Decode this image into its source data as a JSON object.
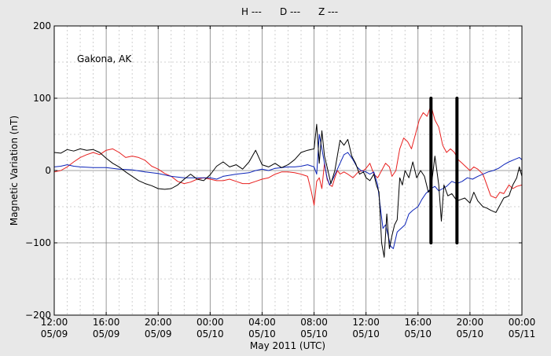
{
  "chart_data": {
    "type": "line",
    "station": "Gakona, AK",
    "ylabel": "Magnetic Variation (nT)",
    "xlabel": "May 2011 (UTC)",
    "xlim": [
      0,
      36
    ],
    "ylim": [
      -200,
      200
    ],
    "yticks": [
      -200,
      -100,
      0,
      100,
      200
    ],
    "ytick_labels": [
      "−200",
      "−100",
      "0",
      "100",
      "200"
    ],
    "xticks": [
      {
        "x": 0,
        "time": "12:00",
        "date": "05/09"
      },
      {
        "x": 4,
        "time": "16:00",
        "date": "05/09"
      },
      {
        "x": 8,
        "time": "20:00",
        "date": "05/09"
      },
      {
        "x": 12,
        "time": "00:00",
        "date": "05/10"
      },
      {
        "x": 16,
        "time": "04:00",
        "date": "05/10"
      },
      {
        "x": 20,
        "time": "08:00",
        "date": "05/10"
      },
      {
        "x": 24,
        "time": "12:00",
        "date": "05/10"
      },
      {
        "x": 28,
        "time": "16:00",
        "date": "05/10"
      },
      {
        "x": 32,
        "time": "20:00",
        "date": "05/10"
      },
      {
        "x": 36,
        "time": "00:00",
        "date": "05/11"
      }
    ],
    "grid": true,
    "legend_position": "top-center",
    "series": [
      {
        "name": "H ---",
        "color": "#000000",
        "points": [
          [
            0,
            25
          ],
          [
            0.5,
            24
          ],
          [
            1,
            29
          ],
          [
            1.5,
            27
          ],
          [
            2,
            30
          ],
          [
            2.5,
            28
          ],
          [
            3,
            29
          ],
          [
            3.5,
            25
          ],
          [
            4,
            17
          ],
          [
            4.5,
            10
          ],
          [
            5,
            5
          ],
          [
            5.5,
            -2
          ],
          [
            6,
            -8
          ],
          [
            6.5,
            -14
          ],
          [
            7,
            -18
          ],
          [
            7.5,
            -21
          ],
          [
            8,
            -25
          ],
          [
            8.5,
            -26
          ],
          [
            9,
            -25
          ],
          [
            9.5,
            -20
          ],
          [
            10,
            -12
          ],
          [
            10.5,
            -5
          ],
          [
            11,
            -12
          ],
          [
            11.5,
            -14
          ],
          [
            12,
            -6
          ],
          [
            12.5,
            6
          ],
          [
            13,
            12
          ],
          [
            13.5,
            5
          ],
          [
            14,
            8
          ],
          [
            14.5,
            2
          ],
          [
            15,
            12
          ],
          [
            15.5,
            28
          ],
          [
            16,
            8
          ],
          [
            16.5,
            5
          ],
          [
            17,
            10
          ],
          [
            17.5,
            4
          ],
          [
            18,
            8
          ],
          [
            18.5,
            15
          ],
          [
            19,
            25
          ],
          [
            19.5,
            28
          ],
          [
            20,
            30
          ],
          [
            20.2,
            64
          ],
          [
            20.4,
            10
          ],
          [
            20.6,
            55
          ],
          [
            20.8,
            20
          ],
          [
            21,
            5
          ],
          [
            21.3,
            -18
          ],
          [
            21.6,
            0
          ],
          [
            22,
            42
          ],
          [
            22.3,
            35
          ],
          [
            22.6,
            43
          ],
          [
            22.9,
            20
          ],
          [
            23.2,
            10
          ],
          [
            23.5,
            -5
          ],
          [
            23.8,
            -2
          ],
          [
            24,
            -10
          ],
          [
            24.3,
            -14
          ],
          [
            24.6,
            -5
          ],
          [
            24.8,
            -20
          ],
          [
            25,
            -30
          ],
          [
            25.2,
            -100
          ],
          [
            25.4,
            -120
          ],
          [
            25.6,
            -60
          ],
          [
            25.8,
            -108
          ],
          [
            26,
            -90
          ],
          [
            26.2,
            -75
          ],
          [
            26.4,
            -68
          ],
          [
            26.6,
            -10
          ],
          [
            26.8,
            -20
          ],
          [
            27,
            0
          ],
          [
            27.3,
            -10
          ],
          [
            27.6,
            12
          ],
          [
            27.9,
            -10
          ],
          [
            28.2,
            0
          ],
          [
            28.5,
            -8
          ],
          [
            28.8,
            -30
          ],
          [
            29,
            -25
          ],
          [
            29.3,
            20
          ],
          [
            29.6,
            -20
          ],
          [
            29.8,
            -70
          ],
          [
            30,
            -20
          ],
          [
            30.3,
            -35
          ],
          [
            30.6,
            -32
          ],
          [
            31,
            -42
          ],
          [
            31.3,
            -40
          ],
          [
            31.6,
            -38
          ],
          [
            32,
            -45
          ],
          [
            32.3,
            -30
          ],
          [
            32.6,
            -42
          ],
          [
            33,
            -50
          ],
          [
            33.3,
            -52
          ],
          [
            33.6,
            -55
          ],
          [
            34,
            -58
          ],
          [
            34.3,
            -48
          ],
          [
            34.6,
            -38
          ],
          [
            35,
            -35
          ],
          [
            35.3,
            -20
          ],
          [
            35.6,
            -10
          ],
          [
            35.8,
            5
          ],
          [
            36,
            -8
          ]
        ]
      },
      {
        "name": "D ---",
        "color": "#e8201f",
        "points": [
          [
            0,
            -2
          ],
          [
            0.5,
            0
          ],
          [
            1,
            5
          ],
          [
            1.5,
            12
          ],
          [
            2,
            18
          ],
          [
            2.5,
            22
          ],
          [
            3,
            25
          ],
          [
            3.5,
            22
          ],
          [
            4,
            28
          ],
          [
            4.5,
            30
          ],
          [
            5,
            25
          ],
          [
            5.5,
            18
          ],
          [
            6,
            20
          ],
          [
            6.5,
            18
          ],
          [
            7,
            14
          ],
          [
            7.5,
            6
          ],
          [
            8,
            2
          ],
          [
            8.5,
            -4
          ],
          [
            9,
            -8
          ],
          [
            9.5,
            -15
          ],
          [
            10,
            -18
          ],
          [
            10.5,
            -16
          ],
          [
            11,
            -12
          ],
          [
            11.5,
            -10
          ],
          [
            12,
            -12
          ],
          [
            12.5,
            -14
          ],
          [
            13,
            -14
          ],
          [
            13.5,
            -12
          ],
          [
            14,
            -15
          ],
          [
            14.5,
            -18
          ],
          [
            15,
            -18
          ],
          [
            15.5,
            -15
          ],
          [
            16,
            -12
          ],
          [
            16.5,
            -10
          ],
          [
            17,
            -5
          ],
          [
            17.5,
            -2
          ],
          [
            18,
            -2
          ],
          [
            18.5,
            -3
          ],
          [
            19,
            -5
          ],
          [
            19.5,
            -8
          ],
          [
            19.8,
            -30
          ],
          [
            20,
            -48
          ],
          [
            20.2,
            -15
          ],
          [
            20.4,
            -10
          ],
          [
            20.6,
            -25
          ],
          [
            20.8,
            10
          ],
          [
            21,
            -12
          ],
          [
            21.2,
            -20
          ],
          [
            21.4,
            -22
          ],
          [
            21.6,
            -10
          ],
          [
            21.8,
            0
          ],
          [
            22,
            -5
          ],
          [
            22.3,
            -2
          ],
          [
            22.6,
            -5
          ],
          [
            23,
            -10
          ],
          [
            23.4,
            -2
          ],
          [
            23.8,
            0
          ],
          [
            24,
            3
          ],
          [
            24.3,
            10
          ],
          [
            24.6,
            -5
          ],
          [
            24.9,
            -10
          ],
          [
            25.2,
            0
          ],
          [
            25.5,
            10
          ],
          [
            25.8,
            5
          ],
          [
            26,
            -8
          ],
          [
            26.3,
            0
          ],
          [
            26.6,
            30
          ],
          [
            26.9,
            45
          ],
          [
            27.2,
            40
          ],
          [
            27.5,
            30
          ],
          [
            27.8,
            50
          ],
          [
            28.1,
            70
          ],
          [
            28.4,
            80
          ],
          [
            28.7,
            75
          ],
          [
            29,
            90
          ],
          [
            29.3,
            70
          ],
          [
            29.6,
            60
          ],
          [
            29.9,
            35
          ],
          [
            30.2,
            25
          ],
          [
            30.5,
            30
          ],
          [
            30.8,
            25
          ],
          [
            31.1,
            15
          ],
          [
            31.4,
            10
          ],
          [
            31.7,
            5
          ],
          [
            32,
            0
          ],
          [
            32.3,
            5
          ],
          [
            32.6,
            2
          ],
          [
            33,
            -5
          ],
          [
            33.3,
            -20
          ],
          [
            33.6,
            -35
          ],
          [
            34,
            -38
          ],
          [
            34.3,
            -30
          ],
          [
            34.6,
            -32
          ],
          [
            35,
            -20
          ],
          [
            35.3,
            -25
          ],
          [
            35.6,
            -22
          ],
          [
            36,
            -20
          ]
        ]
      },
      {
        "name": "Z ---",
        "color": "#0b23b8",
        "points": [
          [
            0,
            5
          ],
          [
            0.5,
            6
          ],
          [
            1,
            8
          ],
          [
            1.5,
            6
          ],
          [
            2,
            5
          ],
          [
            3,
            4
          ],
          [
            4,
            4
          ],
          [
            4.5,
            3
          ],
          [
            5,
            2
          ],
          [
            6,
            1
          ],
          [
            7,
            -2
          ],
          [
            8,
            -4
          ],
          [
            9,
            -8
          ],
          [
            10,
            -10
          ],
          [
            11,
            -10
          ],
          [
            12,
            -10
          ],
          [
            12.5,
            -12
          ],
          [
            13,
            -8
          ],
          [
            14,
            -5
          ],
          [
            15,
            -3
          ],
          [
            15.5,
            0
          ],
          [
            16,
            2
          ],
          [
            16.5,
            0
          ],
          [
            17,
            3
          ],
          [
            18,
            5
          ],
          [
            18.5,
            5
          ],
          [
            19,
            6
          ],
          [
            19.5,
            8
          ],
          [
            20,
            5
          ],
          [
            20.2,
            -5
          ],
          [
            20.4,
            50
          ],
          [
            20.6,
            30
          ],
          [
            20.8,
            10
          ],
          [
            21,
            -10
          ],
          [
            21.2,
            -20
          ],
          [
            21.5,
            -10
          ],
          [
            22,
            10
          ],
          [
            22.3,
            22
          ],
          [
            22.6,
            25
          ],
          [
            23,
            15
          ],
          [
            23.3,
            5
          ],
          [
            23.6,
            0
          ],
          [
            24,
            -2
          ],
          [
            24.3,
            -5
          ],
          [
            24.6,
            -2
          ],
          [
            24.9,
            -20
          ],
          [
            25.1,
            -50
          ],
          [
            25.3,
            -80
          ],
          [
            25.5,
            -75
          ],
          [
            25.7,
            -90
          ],
          [
            25.9,
            -105
          ],
          [
            26.1,
            -108
          ],
          [
            26.4,
            -85
          ],
          [
            26.7,
            -80
          ],
          [
            27,
            -75
          ],
          [
            27.3,
            -60
          ],
          [
            27.6,
            -55
          ],
          [
            28,
            -50
          ],
          [
            28.3,
            -40
          ],
          [
            28.6,
            -32
          ],
          [
            29,
            -25
          ],
          [
            29.3,
            -22
          ],
          [
            29.6,
            -28
          ],
          [
            29.9,
            -25
          ],
          [
            30.2,
            -22
          ],
          [
            30.6,
            -15
          ],
          [
            31,
            -18
          ],
          [
            31.4,
            -15
          ],
          [
            31.8,
            -10
          ],
          [
            32.2,
            -12
          ],
          [
            32.6,
            -8
          ],
          [
            33,
            -5
          ],
          [
            33.4,
            -2
          ],
          [
            33.8,
            0
          ],
          [
            34.2,
            3
          ],
          [
            34.6,
            8
          ],
          [
            35,
            12
          ],
          [
            35.4,
            15
          ],
          [
            35.8,
            18
          ],
          [
            36,
            15
          ]
        ]
      }
    ],
    "markers": [
      {
        "x": 29,
        "y_from": -100,
        "y_to": 100,
        "color": "#000000"
      },
      {
        "x": 31,
        "y_from": -100,
        "y_to": 100,
        "color": "#000000"
      }
    ]
  }
}
